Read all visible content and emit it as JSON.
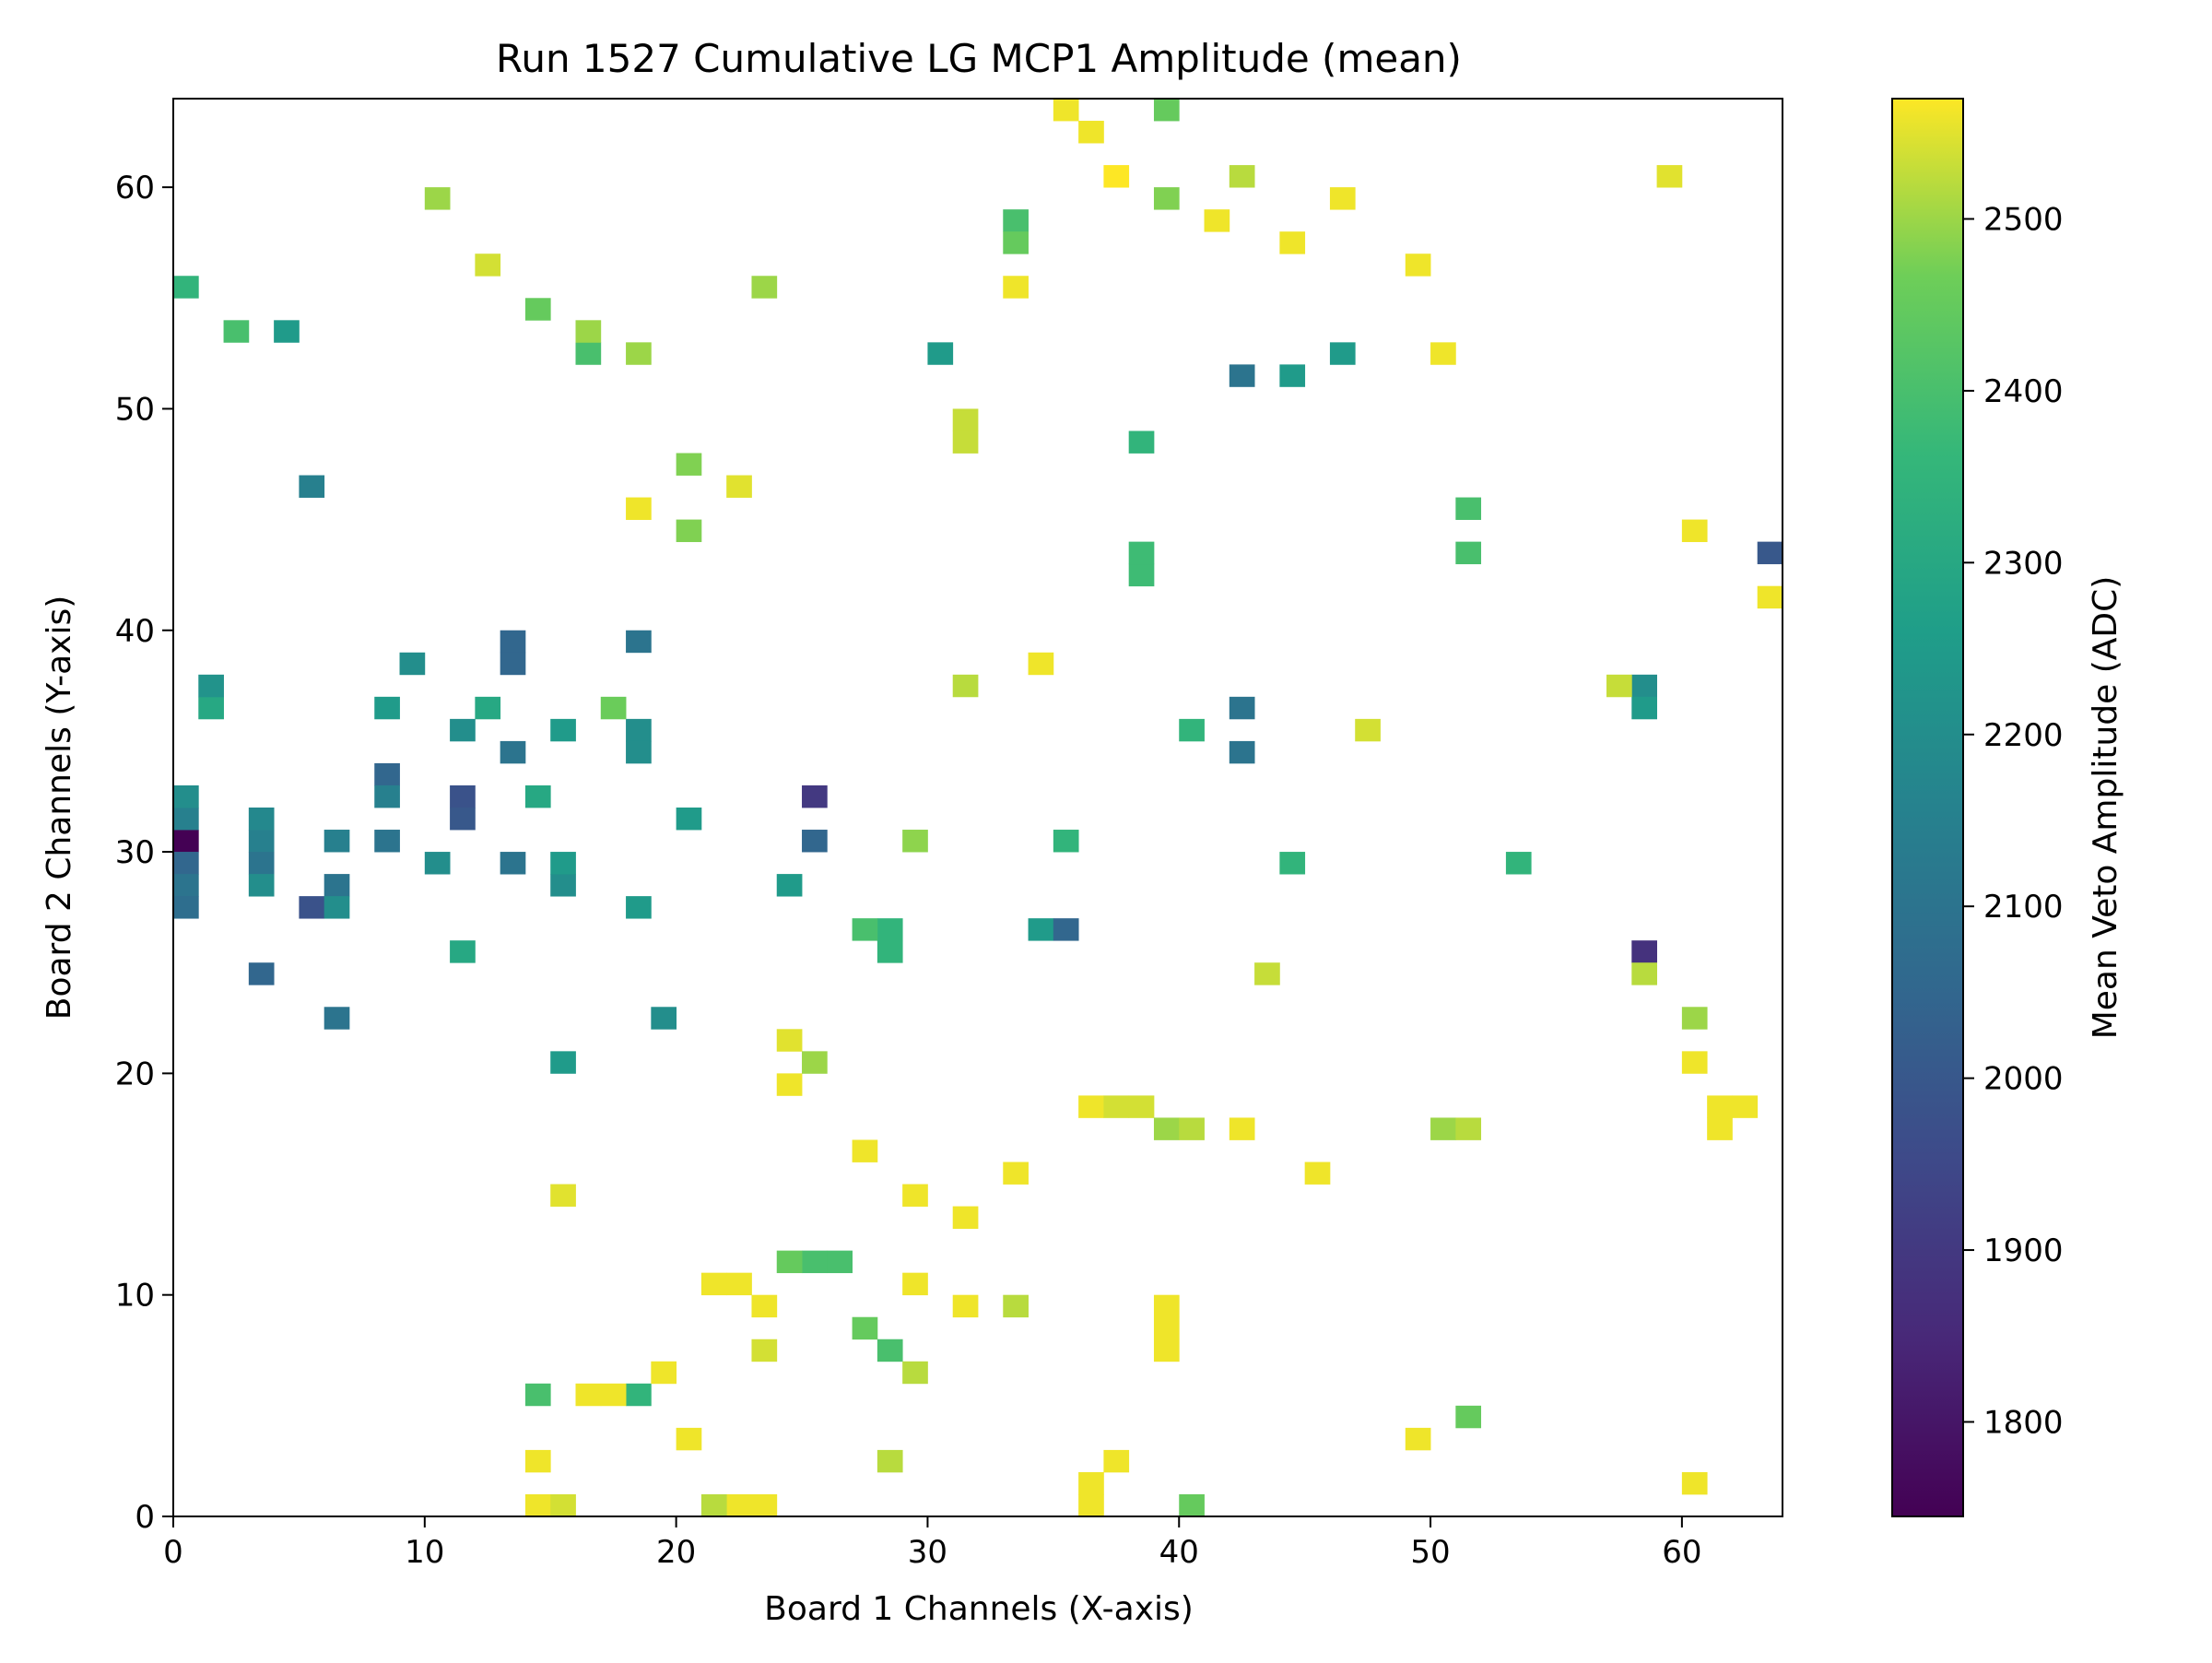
{
  "chart_data": {
    "type": "heatmap",
    "title": "Run 1527 Cumulative LG MCP1 Amplitude (mean)",
    "xlabel": "Board 1 Channels (X-axis)",
    "ylabel": "Board 2 Channels (Y-axis)",
    "colorbar_label": "Mean Veto Amplitude (ADC)",
    "colormap": "viridis",
    "xlim": [
      0,
      64
    ],
    "ylim": [
      0,
      64
    ],
    "x_ticks": [
      0,
      10,
      20,
      30,
      40,
      50,
      60
    ],
    "y_ticks": [
      0,
      10,
      20,
      30,
      40,
      50,
      60
    ],
    "color_range": [
      1745,
      2570
    ],
    "colorbar_ticks": [
      1800,
      1900,
      2000,
      2100,
      2200,
      2300,
      2400,
      2500
    ],
    "grid": false,
    "cells_format": "[board1_channel, board2_channel, mean_amplitude]",
    "cells": [
      [
        0,
        30,
        1745
      ],
      [
        0,
        29,
        2050
      ],
      [
        0,
        28,
        2100
      ],
      [
        0,
        27,
        2080
      ],
      [
        0,
        31,
        2150
      ],
      [
        0,
        32,
        2200
      ],
      [
        1,
        36,
        2300
      ],
      [
        1,
        37,
        2220
      ],
      [
        3,
        30,
        2150
      ],
      [
        3,
        29,
        2100
      ],
      [
        3,
        28,
        2200
      ],
      [
        3,
        31,
        2180
      ],
      [
        3,
        24,
        2050
      ],
      [
        4,
        53,
        2250
      ],
      [
        5,
        46,
        2150
      ],
      [
        5,
        27,
        1980
      ],
      [
        6,
        30,
        2150
      ],
      [
        6,
        28,
        2100
      ],
      [
        6,
        27,
        2200
      ],
      [
        6,
        22,
        2100
      ],
      [
        8,
        33,
        2050
      ],
      [
        8,
        32,
        2150
      ],
      [
        8,
        36,
        2250
      ],
      [
        8,
        30,
        2100
      ],
      [
        9,
        38,
        2200
      ],
      [
        10,
        29,
        2200
      ],
      [
        11,
        32,
        1980
      ],
      [
        11,
        31,
        2000
      ],
      [
        11,
        25,
        2300
      ],
      [
        11,
        35,
        2200
      ],
      [
        12,
        36,
        2300
      ],
      [
        13,
        39,
        2050
      ],
      [
        13,
        38,
        2050
      ],
      [
        13,
        34,
        2100
      ],
      [
        13,
        29,
        2100
      ],
      [
        14,
        32,
        2300
      ],
      [
        15,
        28,
        2200
      ],
      [
        15,
        29,
        2250
      ],
      [
        15,
        20,
        2250
      ],
      [
        15,
        35,
        2250
      ],
      [
        18,
        39,
        2100
      ],
      [
        18,
        35,
        2200
      ],
      [
        18,
        34,
        2200
      ],
      [
        18,
        27,
        2250
      ],
      [
        19,
        22,
        2200
      ],
      [
        20,
        31,
        2250
      ],
      [
        24,
        28,
        2250
      ],
      [
        25,
        32,
        1900
      ],
      [
        25,
        30,
        2050
      ],
      [
        30,
        52,
        2250
      ],
      [
        34,
        26,
        2250
      ],
      [
        35,
        26,
        2050
      ],
      [
        42,
        51,
        2100
      ],
      [
        42,
        36,
        2100
      ],
      [
        42,
        34,
        2100
      ],
      [
        44,
        51,
        2250
      ],
      [
        46,
        52,
        2250
      ],
      [
        58,
        37,
        2200
      ],
      [
        58,
        36,
        2250
      ],
      [
        58,
        25,
        1880
      ],
      [
        63,
        43,
        2000
      ],
      [
        35,
        30,
        2350
      ],
      [
        38,
        48,
        2350
      ],
      [
        38,
        42,
        2380
      ],
      [
        38,
        43,
        2380
      ],
      [
        51,
        45,
        2400
      ],
      [
        51,
        43,
        2400
      ],
      [
        53,
        29,
        2350
      ],
      [
        44,
        29,
        2350
      ],
      [
        40,
        35,
        2350
      ],
      [
        39,
        63,
        2450
      ],
      [
        40,
        0,
        2450
      ],
      [
        33,
        58,
        2400
      ],
      [
        33,
        57,
        2450
      ],
      [
        28,
        26,
        2350
      ],
      [
        27,
        26,
        2400
      ],
      [
        28,
        25,
        2350
      ],
      [
        28,
        7,
        2400
      ],
      [
        27,
        8,
        2450
      ],
      [
        26,
        11,
        2400
      ],
      [
        25,
        11,
        2400
      ],
      [
        24,
        11,
        2450
      ],
      [
        14,
        5,
        2400
      ],
      [
        18,
        5,
        2350
      ],
      [
        51,
        4,
        2450
      ],
      [
        0,
        55,
        2350
      ],
      [
        2,
        53,
        2400
      ],
      [
        16,
        52,
        2400
      ],
      [
        18,
        52,
        2500
      ],
      [
        15,
        14,
        2550
      ],
      [
        18,
        45,
        2560
      ],
      [
        20,
        47,
        2480
      ],
      [
        22,
        46,
        2550
      ],
      [
        23,
        55,
        2500
      ],
      [
        10,
        59,
        2500
      ],
      [
        12,
        56,
        2540
      ],
      [
        14,
        54,
        2450
      ],
      [
        16,
        53,
        2500
      ],
      [
        17,
        36,
        2460
      ],
      [
        20,
        44,
        2480
      ],
      [
        24,
        21,
        2550
      ],
      [
        31,
        49,
        2530
      ],
      [
        31,
        48,
        2530
      ],
      [
        33,
        55,
        2560
      ],
      [
        35,
        63,
        2560
      ],
      [
        36,
        62,
        2560
      ],
      [
        37,
        60,
        2570
      ],
      [
        39,
        59,
        2480
      ],
      [
        41,
        58,
        2560
      ],
      [
        42,
        60,
        2520
      ],
      [
        44,
        57,
        2560
      ],
      [
        46,
        59,
        2560
      ],
      [
        49,
        56,
        2560
      ],
      [
        50,
        52,
        2560
      ],
      [
        59,
        60,
        2550
      ],
      [
        60,
        44,
        2560
      ],
      [
        63,
        41,
        2560
      ],
      [
        57,
        37,
        2530
      ],
      [
        47,
        35,
        2540
      ],
      [
        34,
        38,
        2560
      ],
      [
        31,
        37,
        2520
      ],
      [
        29,
        30,
        2490
      ],
      [
        24,
        19,
        2560
      ],
      [
        25,
        20,
        2500
      ],
      [
        27,
        16,
        2560
      ],
      [
        29,
        14,
        2560
      ],
      [
        31,
        13,
        2560
      ],
      [
        33,
        15,
        2560
      ],
      [
        36,
        18,
        2560
      ],
      [
        37,
        18,
        2540
      ],
      [
        38,
        18,
        2540
      ],
      [
        39,
        17,
        2500
      ],
      [
        40,
        17,
        2520
      ],
      [
        42,
        17,
        2560
      ],
      [
        45,
        15,
        2560
      ],
      [
        50,
        17,
        2500
      ],
      [
        51,
        17,
        2520
      ],
      [
        60,
        20,
        2560
      ],
      [
        61,
        18,
        2560
      ],
      [
        62,
        18,
        2560
      ],
      [
        61,
        17,
        2560
      ],
      [
        60,
        22,
        2500
      ],
      [
        58,
        24,
        2520
      ],
      [
        60,
        1,
        2560
      ],
      [
        49,
        3,
        2560
      ],
      [
        43,
        24,
        2530
      ],
      [
        36,
        1,
        2560
      ],
      [
        36,
        0,
        2560
      ],
      [
        39,
        8,
        2560
      ],
      [
        39,
        9,
        2560
      ],
      [
        39,
        7,
        2560
      ],
      [
        37,
        2,
        2560
      ],
      [
        33,
        9,
        2520
      ],
      [
        31,
        9,
        2560
      ],
      [
        29,
        10,
        2560
      ],
      [
        28,
        2,
        2520
      ],
      [
        29,
        6,
        2520
      ],
      [
        22,
        0,
        2560
      ],
      [
        23,
        0,
        2560
      ],
      [
        21,
        0,
        2520
      ],
      [
        14,
        0,
        2560
      ],
      [
        15,
        0,
        2540
      ],
      [
        14,
        2,
        2560
      ],
      [
        16,
        5,
        2560
      ],
      [
        17,
        5,
        2560
      ],
      [
        19,
        6,
        2560
      ],
      [
        20,
        3,
        2560
      ],
      [
        21,
        10,
        2560
      ],
      [
        22,
        10,
        2560
      ],
      [
        23,
        9,
        2560
      ],
      [
        23,
        7,
        2540
      ]
    ]
  }
}
